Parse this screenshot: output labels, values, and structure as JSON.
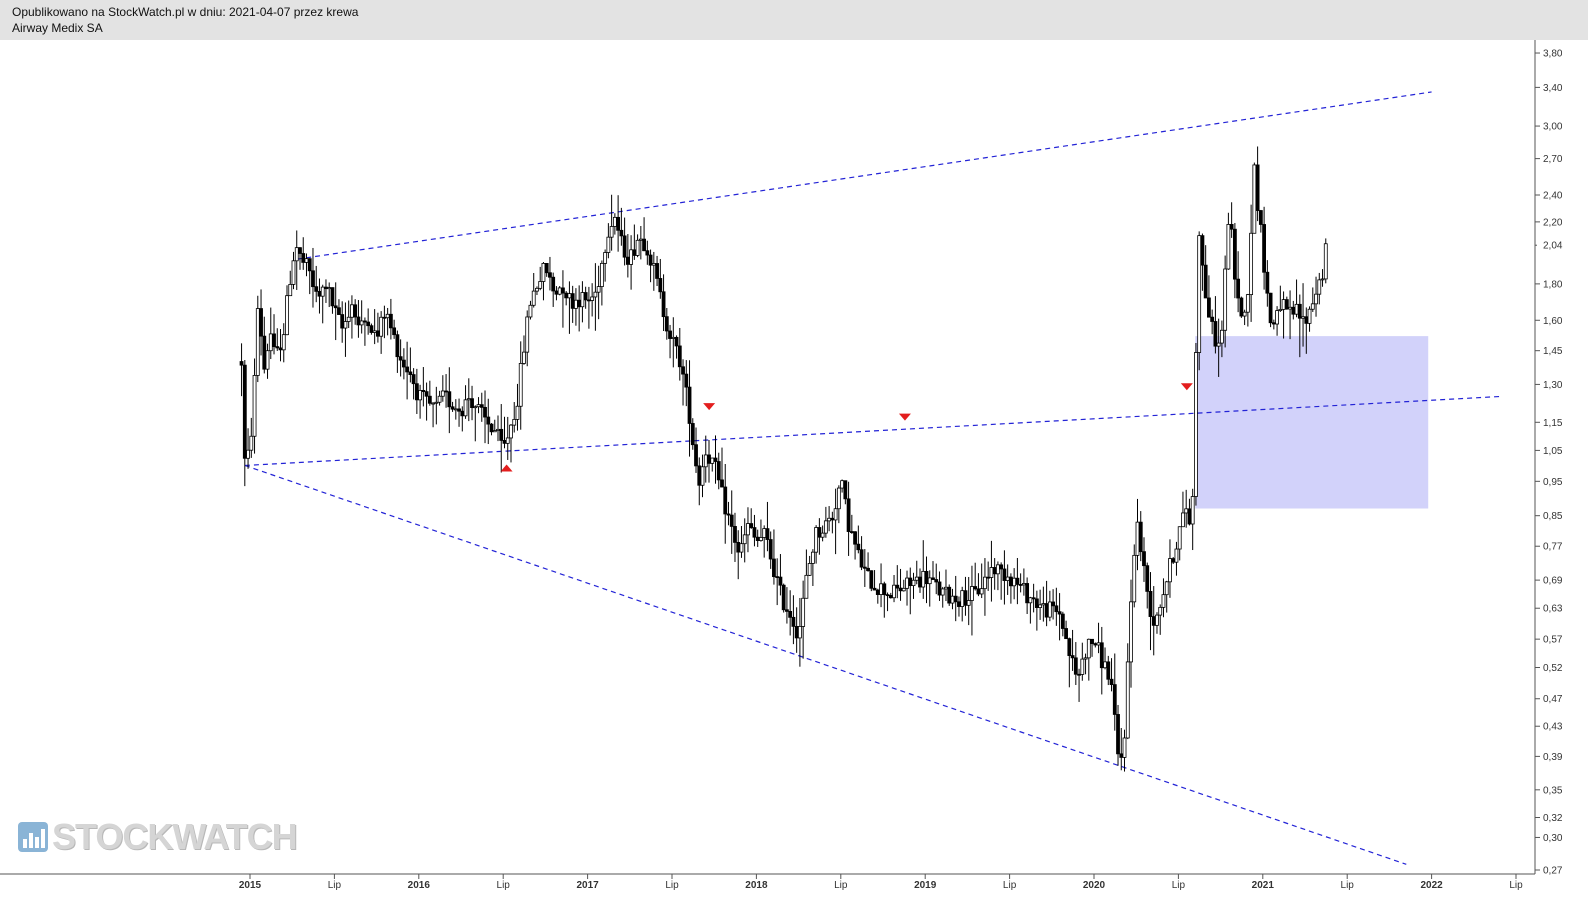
{
  "header": {
    "line1": "Opublikowano na StockWatch.pl w dniu: 2021-04-07 przez krewa",
    "line2": "Airway Medix SA"
  },
  "watermark": {
    "text": "STOCKWATCH",
    "icon": "bar-chart-icon"
  },
  "chart_data": {
    "type": "candlestick",
    "title": "Airway Medix SA",
    "y_scale": "log",
    "ylim": [
      0.27,
      3.9
    ],
    "y_ticks": [
      "3,80",
      "3,40",
      "3,00",
      "2,70",
      "2,40",
      "2,20",
      "2,04",
      "1,80",
      "1,60",
      "1,45",
      "1,30",
      "1,15",
      "1,05",
      "0,95",
      "0,85",
      "0,77",
      "0,69",
      "0,63",
      "0,57",
      "0,52",
      "0,47",
      "0,43",
      "0,39",
      "0,35",
      "0,32",
      "0,30",
      "0,27"
    ],
    "last_price_label": "2,04",
    "x_ticks": [
      {
        "label": "2015",
        "t": 2015.0,
        "bold": true
      },
      {
        "label": "Lip",
        "t": 2015.5,
        "bold": false
      },
      {
        "label": "2016",
        "t": 2016.0,
        "bold": true
      },
      {
        "label": "Lip",
        "t": 2016.5,
        "bold": false
      },
      {
        "label": "2017",
        "t": 2017.0,
        "bold": true
      },
      {
        "label": "Lip",
        "t": 2017.5,
        "bold": false
      },
      {
        "label": "2018",
        "t": 2018.0,
        "bold": true
      },
      {
        "label": "Lip",
        "t": 2018.5,
        "bold": false
      },
      {
        "label": "2019",
        "t": 2019.0,
        "bold": true
      },
      {
        "label": "Lip",
        "t": 2019.5,
        "bold": false
      },
      {
        "label": "2020",
        "t": 2020.0,
        "bold": true
      },
      {
        "label": "Lip",
        "t": 2020.5,
        "bold": false
      },
      {
        "label": "2021",
        "t": 2021.0,
        "bold": true
      },
      {
        "label": "Lip",
        "t": 2021.5,
        "bold": false
      },
      {
        "label": "2022",
        "t": 2022.0,
        "bold": true
      },
      {
        "label": "Lip",
        "t": 2022.5,
        "bold": false
      }
    ],
    "xlim": [
      2015.0,
      2022.5
    ],
    "price_points": [
      [
        2014.95,
        1.4
      ],
      [
        2014.97,
        1.0
      ],
      [
        2015.0,
        1.05
      ],
      [
        2015.03,
        1.35
      ],
      [
        2015.05,
        1.75
      ],
      [
        2015.08,
        1.35
      ],
      [
        2015.12,
        1.55
      ],
      [
        2015.15,
        1.4
      ],
      [
        2015.2,
        1.55
      ],
      [
        2015.24,
        1.85
      ],
      [
        2015.27,
        2.05
      ],
      [
        2015.3,
        1.95
      ],
      [
        2015.35,
        1.88
      ],
      [
        2015.4,
        1.7
      ],
      [
        2015.45,
        1.8
      ],
      [
        2015.5,
        1.65
      ],
      [
        2015.55,
        1.55
      ],
      [
        2015.6,
        1.7
      ],
      [
        2015.65,
        1.55
      ],
      [
        2015.7,
        1.62
      ],
      [
        2015.75,
        1.5
      ],
      [
        2015.8,
        1.65
      ],
      [
        2015.85,
        1.52
      ],
      [
        2015.9,
        1.4
      ],
      [
        2015.95,
        1.35
      ],
      [
        2016.0,
        1.25
      ],
      [
        2016.05,
        1.22
      ],
      [
        2016.1,
        1.2
      ],
      [
        2016.15,
        1.25
      ],
      [
        2016.2,
        1.22
      ],
      [
        2016.25,
        1.2
      ],
      [
        2016.3,
        1.25
      ],
      [
        2016.35,
        1.2
      ],
      [
        2016.4,
        1.15
      ],
      [
        2016.45,
        1.12
      ],
      [
        2016.5,
        1.05
      ],
      [
        2016.55,
        1.15
      ],
      [
        2016.58,
        1.22
      ],
      [
        2016.62,
        1.45
      ],
      [
        2016.66,
        1.7
      ],
      [
        2016.7,
        1.8
      ],
      [
        2016.75,
        1.9
      ],
      [
        2016.8,
        1.75
      ],
      [
        2016.85,
        1.8
      ],
      [
        2016.9,
        1.7
      ],
      [
        2016.95,
        1.72
      ],
      [
        2017.0,
        1.7
      ],
      [
        2017.05,
        1.75
      ],
      [
        2017.08,
        1.9
      ],
      [
        2017.12,
        2.15
      ],
      [
        2017.16,
        2.25
      ],
      [
        2017.2,
        2.05
      ],
      [
        2017.25,
        1.95
      ],
      [
        2017.3,
        2.1
      ],
      [
        2017.35,
        2.05
      ],
      [
        2017.4,
        1.85
      ],
      [
        2017.45,
        1.65
      ],
      [
        2017.5,
        1.5
      ],
      [
        2017.55,
        1.4
      ],
      [
        2017.6,
        1.2
      ],
      [
        2017.63,
        1.05
      ],
      [
        2017.66,
        0.95
      ],
      [
        2017.7,
        1.05
      ],
      [
        2017.75,
        1.0
      ],
      [
        2017.8,
        0.9
      ],
      [
        2017.85,
        0.82
      ],
      [
        2017.9,
        0.75
      ],
      [
        2017.95,
        0.82
      ],
      [
        2018.0,
        0.78
      ],
      [
        2018.05,
        0.8
      ],
      [
        2018.1,
        0.72
      ],
      [
        2018.15,
        0.65
      ],
      [
        2018.2,
        0.62
      ],
      [
        2018.25,
        0.58
      ],
      [
        2018.3,
        0.7
      ],
      [
        2018.35,
        0.8
      ],
      [
        2018.4,
        0.82
      ],
      [
        2018.45,
        0.85
      ],
      [
        2018.5,
        0.95
      ],
      [
        2018.55,
        0.82
      ],
      [
        2018.6,
        0.75
      ],
      [
        2018.65,
        0.7
      ],
      [
        2018.7,
        0.68
      ],
      [
        2018.8,
        0.66
      ],
      [
        2018.9,
        0.68
      ],
      [
        2019.0,
        0.7
      ],
      [
        2019.1,
        0.66
      ],
      [
        2019.2,
        0.65
      ],
      [
        2019.3,
        0.66
      ],
      [
        2019.4,
        0.72
      ],
      [
        2019.5,
        0.7
      ],
      [
        2019.6,
        0.66
      ],
      [
        2019.7,
        0.63
      ],
      [
        2019.8,
        0.62
      ],
      [
        2019.85,
        0.55
      ],
      [
        2019.9,
        0.5
      ],
      [
        2019.95,
        0.55
      ],
      [
        2020.0,
        0.57
      ],
      [
        2020.05,
        0.53
      ],
      [
        2020.1,
        0.5
      ],
      [
        2020.15,
        0.37
      ],
      [
        2020.18,
        0.42
      ],
      [
        2020.22,
        0.65
      ],
      [
        2020.25,
        0.85
      ],
      [
        2020.3,
        0.7
      ],
      [
        2020.35,
        0.6
      ],
      [
        2020.4,
        0.65
      ],
      [
        2020.45,
        0.72
      ],
      [
        2020.5,
        0.8
      ],
      [
        2020.55,
        0.88
      ],
      [
        2020.58,
        0.8
      ],
      [
        2020.62,
        2.2
      ],
      [
        2020.65,
        1.8
      ],
      [
        2020.7,
        1.55
      ],
      [
        2020.75,
        1.45
      ],
      [
        2020.8,
        2.3
      ],
      [
        2020.85,
        1.7
      ],
      [
        2020.9,
        1.6
      ],
      [
        2020.95,
        2.6
      ],
      [
        2021.0,
        2.0
      ],
      [
        2021.05,
        1.55
      ],
      [
        2021.1,
        1.7
      ],
      [
        2021.15,
        1.62
      ],
      [
        2021.2,
        1.65
      ],
      [
        2021.25,
        1.58
      ],
      [
        2021.3,
        1.72
      ],
      [
        2021.35,
        1.85
      ],
      [
        2021.38,
        2.04
      ]
    ],
    "overlays": {
      "trendlines": [
        {
          "t1": 2015.28,
          "y1": 1.95,
          "t2": 2022.0,
          "y2": 3.35
        },
        {
          "t1": 2014.97,
          "y1": 1.0,
          "t2": 2022.4,
          "y2": 1.25
        },
        {
          "t1": 2014.97,
          "y1": 1.0,
          "t2": 2021.85,
          "y2": 0.275
        }
      ],
      "zone": {
        "t1": 2020.6,
        "t2": 2021.98,
        "y_low": 0.87,
        "y_high": 1.52,
        "color": "#d2d2fa"
      },
      "markers": [
        {
          "t": 2016.52,
          "y": 1.0,
          "dir": "up"
        },
        {
          "t": 2017.72,
          "y": 1.2,
          "dir": "down"
        },
        {
          "t": 2018.88,
          "y": 1.16,
          "dir": "down"
        },
        {
          "t": 2020.55,
          "y": 1.28,
          "dir": "down"
        }
      ],
      "line_color": "#2323d6",
      "marker_color": "#e31e1e"
    }
  }
}
